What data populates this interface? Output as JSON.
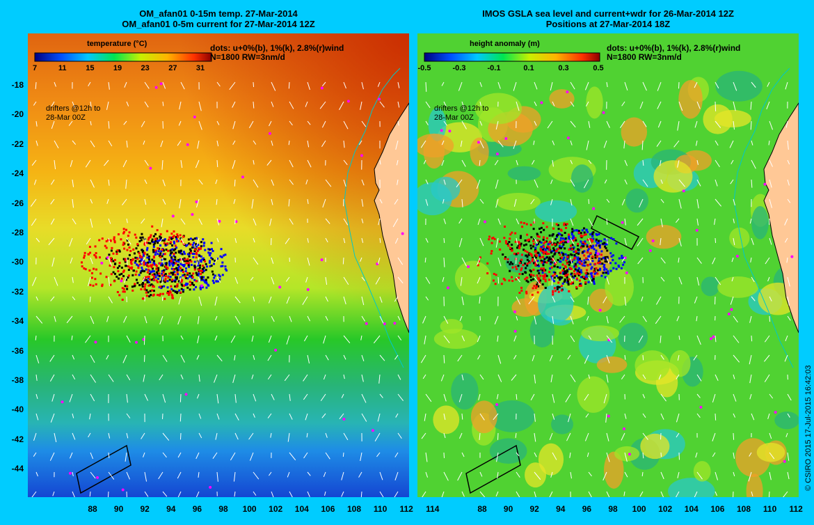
{
  "left_panel": {
    "title_line1": "OM_afan01 0-15m temp. 27-Mar-2014",
    "title_line2": "OM_afan01 0-5m current for 27-Mar-2014 12Z",
    "colorbar_label": "temperature (°C)",
    "colorbar_ticks": [
      "7",
      "11",
      "15",
      "19",
      "23",
      "27",
      "31"
    ],
    "dots_line1": "dots: u+0%(b), 1%(k), 2.8%(r)wind",
    "dots_line2": "N=1800 RW=3nm/d",
    "drifters_line1": "drifters @12h to",
    "drifters_line2": "28-Mar 00Z"
  },
  "right_panel": {
    "title_line1": "IMOS GSLA sea level and current+wdr for 26-Mar-2014 12Z",
    "title_line2": "Positions at 27-Mar-2014 18Z",
    "colorbar_label": "height anomaly (m)",
    "colorbar_ticks": [
      "-0.5",
      "-0.3",
      "-0.1",
      "0.1",
      "0.3",
      "0.5"
    ],
    "dots_line1": "dots: u+0%(b), 1%(k), 2.8%(r)wind",
    "dots_line2": "N=1800 RW=3nm/d",
    "drifters_line1": "drifters @12h to",
    "drifters_line2": "28-Mar 00Z"
  },
  "y_ticks": [
    "-18",
    "-20",
    "-22",
    "-24",
    "-26",
    "-28",
    "-30",
    "-32",
    "-34",
    "-36",
    "-38",
    "-40",
    "-42",
    "-44"
  ],
  "x_ticks": [
    "88",
    "90",
    "92",
    "94",
    "96",
    "98",
    "100",
    "102",
    "104",
    "106",
    "108",
    "110",
    "112",
    "114"
  ],
  "copyright": "© CSIRO 2015   17-Jul-2015 16:42:03",
  "colors": {
    "background": "#00ccff",
    "land": "#ffc896",
    "coast": "#00c8c8",
    "drift_blue": "#0000ff",
    "drift_black": "#000000",
    "drift_red": "#ff0000",
    "drifter_magenta": "#ff00ff"
  }
}
